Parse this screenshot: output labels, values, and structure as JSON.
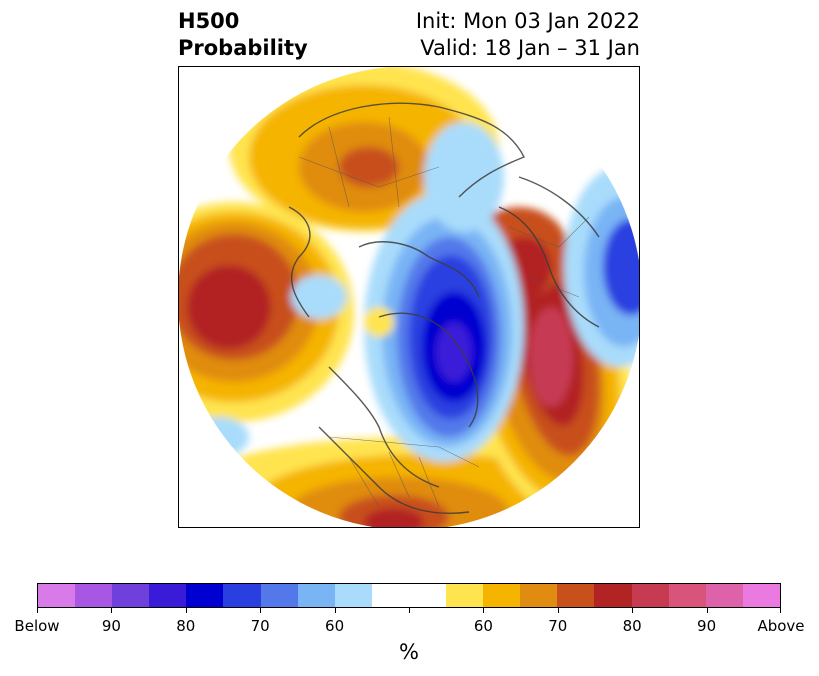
{
  "header": {
    "title_line1": "H500",
    "title_line2": "Probability",
    "init_label": "Init: Mon 03 Jan 2022",
    "valid_label": "Valid: 18 Jan – 31 Jan"
  },
  "colorbar": {
    "colors": [
      "#d87ae8",
      "#a857e4",
      "#7040dc",
      "#3a1bd8",
      "#0000d0",
      "#2a3fe0",
      "#5278ea",
      "#79b4f5",
      "#a9dcfb",
      "#ffffff",
      "#ffe450",
      "#f5b400",
      "#e08c10",
      "#c8501a",
      "#b22424",
      "#c63a52",
      "#d8547a",
      "#de62aa",
      "#ea7ae0"
    ],
    "labels": [
      "Below",
      "90",
      "80",
      "70",
      "60",
      "60",
      "70",
      "80",
      "90",
      "Above"
    ],
    "unit": "%"
  },
  "map": {
    "projection": "north-polar-stereographic",
    "variable": "500 hPa height probability"
  }
}
